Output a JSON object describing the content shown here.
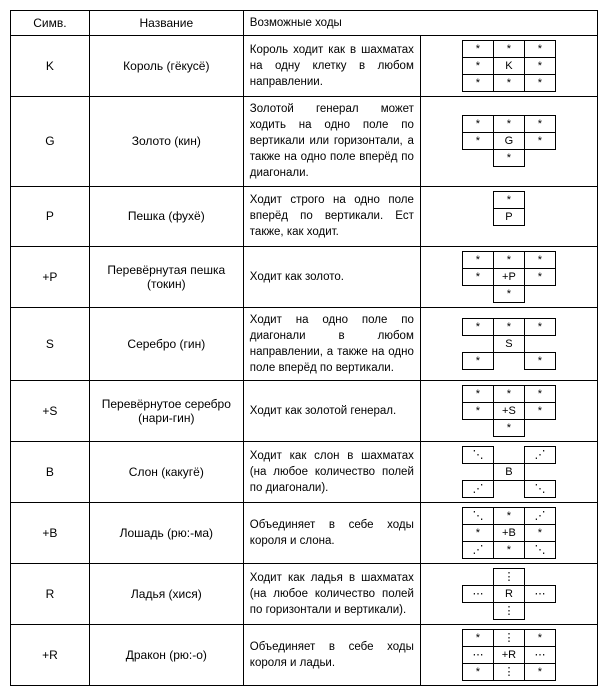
{
  "headers": {
    "sym": "Симв.",
    "name": "Название",
    "moves": "Возможные ходы"
  },
  "glyphs": {
    "star": "*",
    "diag": "⋰",
    "diag2": "⋱",
    "horiz": "⋯",
    "vert": "⋮"
  },
  "rows": [
    {
      "sym": "K",
      "name": "Король (гёкусё)",
      "desc": "Король ходит как в шахматах на одну клетку в любом направлении.",
      "grid": [
        [
          "*",
          "*",
          "*"
        ],
        [
          "*",
          "K",
          "*"
        ],
        [
          "*",
          "*",
          "*"
        ]
      ],
      "borders": [
        [
          1,
          1,
          1
        ],
        [
          1,
          1,
          1
        ],
        [
          1,
          1,
          1
        ]
      ]
    },
    {
      "sym": "G",
      "name": "Золото (кин)",
      "desc": "Золотой генерал может ходить на одно поле по вертикали или горизонтали, а также на одно поле вперёд по диагонали.",
      "grid": [
        [
          "*",
          "*",
          "*"
        ],
        [
          "*",
          "G",
          "*"
        ],
        [
          "",
          "*",
          ""
        ]
      ],
      "borders": [
        [
          1,
          1,
          1
        ],
        [
          1,
          1,
          1
        ],
        [
          0,
          1,
          0
        ]
      ]
    },
    {
      "sym": "P",
      "name": "Пешка (фухё)",
      "desc": "Ходит строго на одно поле вперёд по вертикали. Ест также, как ходит.",
      "grid": [
        [
          "",
          "*",
          ""
        ],
        [
          "",
          "P",
          ""
        ],
        [
          "",
          "",
          ""
        ]
      ],
      "borders": [
        [
          0,
          1,
          0
        ],
        [
          0,
          1,
          0
        ],
        [
          0,
          0,
          0
        ]
      ]
    },
    {
      "sym": "+P",
      "name": "Перевёрнутая пешка (токин)",
      "desc": "Ходит как золото.",
      "grid": [
        [
          "*",
          "*",
          "*"
        ],
        [
          "*",
          "+P",
          "*"
        ],
        [
          "",
          "*",
          ""
        ]
      ],
      "borders": [
        [
          1,
          1,
          1
        ],
        [
          1,
          1,
          1
        ],
        [
          0,
          1,
          0
        ]
      ]
    },
    {
      "sym": "S",
      "name": "Серебро (гин)",
      "desc": "Ходит на одно поле по диагонали в любом направлении, а также на одно поле вперёд по вертикали.",
      "grid": [
        [
          "*",
          "*",
          "*"
        ],
        [
          "",
          "S",
          ""
        ],
        [
          "*",
          "",
          "*"
        ]
      ],
      "borders": [
        [
          1,
          1,
          1
        ],
        [
          0,
          1,
          0
        ],
        [
          1,
          0,
          1
        ]
      ]
    },
    {
      "sym": "+S",
      "name": "Перевёрнутое серебро (нари-гин)",
      "desc": "Ходит как золотой генерал.",
      "grid": [
        [
          "*",
          "*",
          "*"
        ],
        [
          "*",
          "+S",
          "*"
        ],
        [
          "",
          "*",
          ""
        ]
      ],
      "borders": [
        [
          1,
          1,
          1
        ],
        [
          1,
          1,
          1
        ],
        [
          0,
          1,
          0
        ]
      ]
    },
    {
      "sym": "B",
      "name": "Слон (какугё)",
      "desc": "Ходит как слон в шахматах (на любое количество полей по диагонали).",
      "grid": [
        [
          "⋱",
          "",
          "⋰"
        ],
        [
          "",
          "B",
          ""
        ],
        [
          "⋰",
          "",
          "⋱"
        ]
      ],
      "borders": [
        [
          1,
          0,
          1
        ],
        [
          0,
          1,
          0
        ],
        [
          1,
          0,
          1
        ]
      ]
    },
    {
      "sym": "+B",
      "name": "Лошадь (рю:-ма)",
      "desc": "Объединяет в себе ходы короля и слона.",
      "grid": [
        [
          "⋱",
          "*",
          "⋰"
        ],
        [
          "*",
          "+B",
          "*"
        ],
        [
          "⋰",
          "*",
          "⋱"
        ]
      ],
      "borders": [
        [
          1,
          1,
          1
        ],
        [
          1,
          1,
          1
        ],
        [
          1,
          1,
          1
        ]
      ]
    },
    {
      "sym": "R",
      "name": "Ладья (хися)",
      "desc": "Ходит как ладья в шахматах (на любое количество полей по горизонтали и вертикали).",
      "grid": [
        [
          "",
          "⋮",
          ""
        ],
        [
          "⋯",
          "R",
          "⋯"
        ],
        [
          "",
          "⋮",
          ""
        ]
      ],
      "borders": [
        [
          0,
          1,
          0
        ],
        [
          1,
          1,
          1
        ],
        [
          0,
          1,
          0
        ]
      ]
    },
    {
      "sym": "+R",
      "name": "Дракон (рю:-о)",
      "desc": "Объединяет в себе ходы короля и ладьи.",
      "grid": [
        [
          "*",
          "⋮",
          "*"
        ],
        [
          "⋯",
          "+R",
          "⋯"
        ],
        [
          "*",
          "⋮",
          "*"
        ]
      ],
      "borders": [
        [
          1,
          1,
          1
        ],
        [
          1,
          1,
          1
        ],
        [
          1,
          1,
          1
        ]
      ]
    }
  ]
}
